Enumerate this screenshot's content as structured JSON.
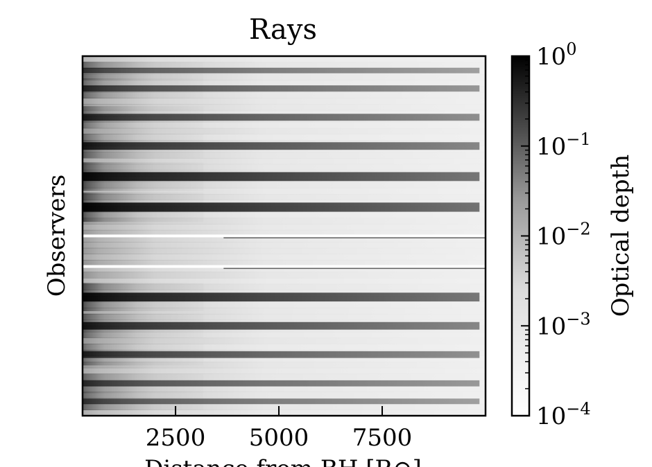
{
  "chart_data": {
    "type": "heatmap",
    "title": "Rays",
    "xlabel": "Distance from BH [R⊙]",
    "ylabel": "Observers",
    "xlim": [
      250,
      10000
    ],
    "x_ticks": [
      {
        "value": 2500,
        "label": "2500"
      },
      {
        "value": 5000,
        "label": "5000"
      },
      {
        "value": 7500,
        "label": "7500"
      }
    ],
    "y_ticks": [],
    "colorbar": {
      "label": "Optical depth",
      "scale": "log",
      "range": [
        0.0001,
        1
      ],
      "colormap": "gray_r",
      "ticks": [
        {
          "value": 1,
          "base": "10",
          "exp": "0"
        },
        {
          "value": 0.1,
          "base": "10",
          "exp": "−1"
        },
        {
          "value": 0.01,
          "base": "10",
          "exp": "−2"
        },
        {
          "value": 0.001,
          "base": "10",
          "exp": "−3"
        },
        {
          "value": 0.0001,
          "base": "10",
          "exp": "−4"
        }
      ]
    },
    "observers": [
      {
        "position": 0.04,
        "peak_depth": 0.004
      },
      {
        "position": 0.09,
        "peak_depth": 0.01
      },
      {
        "position": 0.17,
        "peak_depth": 0.025
      },
      {
        "position": 0.25,
        "peak_depth": 0.06
      },
      {
        "position": 0.335,
        "peak_depth": 0.35
      },
      {
        "position": 0.42,
        "peak_depth": 0.5
      },
      {
        "position": 0.5,
        "peak_depth": 0.0001
      },
      {
        "position": 0.585,
        "peak_depth": 0.0001
      },
      {
        "position": 0.67,
        "peak_depth": 0.3
      },
      {
        "position": 0.75,
        "peak_depth": 0.06
      },
      {
        "position": 0.83,
        "peak_depth": 0.02
      },
      {
        "position": 0.91,
        "peak_depth": 0.008
      },
      {
        "position": 0.96,
        "peak_depth": 0.004
      }
    ]
  }
}
